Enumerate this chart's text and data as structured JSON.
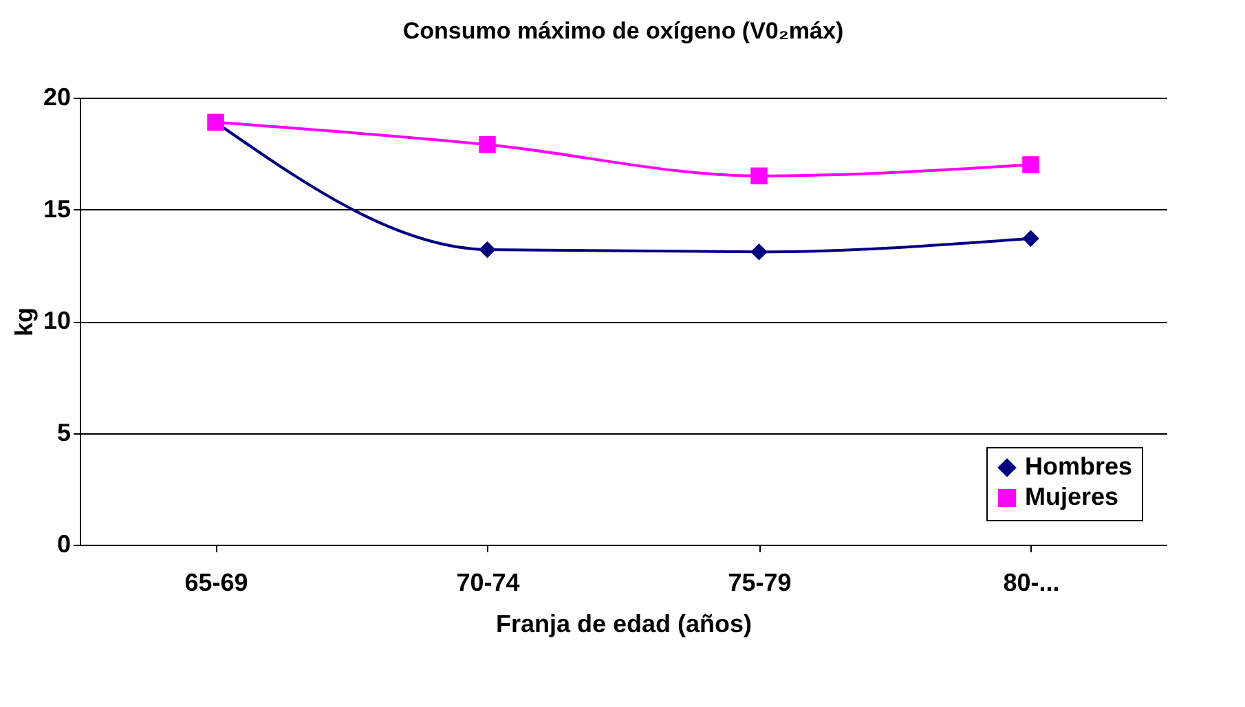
{
  "chart_data": {
    "type": "line",
    "title": "Consumo máximo de oxígeno (V0₂máx)",
    "xlabel": "Franja de edad (años)",
    "ylabel": "kg",
    "categories": [
      "65-69",
      "70-74",
      "75-79",
      "80-..."
    ],
    "series": [
      {
        "name": "Hombres",
        "color": "#000080",
        "marker": "diamond",
        "values": [
          18.9,
          13.2,
          13.1,
          13.7
        ]
      },
      {
        "name": "Mujeres",
        "color": "#ff00ff",
        "marker": "square",
        "values": [
          18.9,
          17.9,
          16.5,
          17.0
        ]
      }
    ],
    "ylim": [
      0,
      20
    ],
    "yticks": [
      0,
      5,
      10,
      15,
      20
    ],
    "grid": "y",
    "legend": "bottom right",
    "line_style": "solid"
  }
}
